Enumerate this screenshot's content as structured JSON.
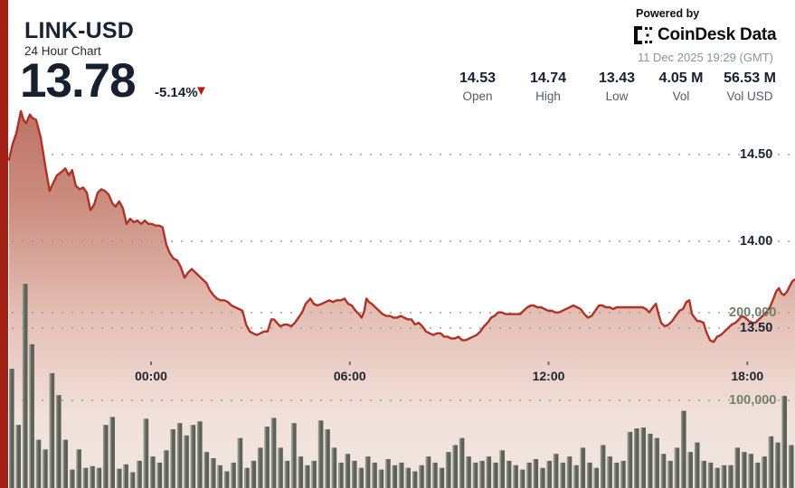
{
  "header": {
    "title": "LINK-USD",
    "subtitle": "24 Hour Chart",
    "price": "13.78",
    "change": "-5.14%",
    "down_arrow": "▼",
    "powered_by": "Powered by",
    "brand": "CoinDesk",
    "brand2": "Data",
    "timestamp": "11 Dec 2025 19:29 (GMT)"
  },
  "stats": [
    {
      "value": "14.53",
      "label": "Open"
    },
    {
      "value": "14.74",
      "label": "High"
    },
    {
      "value": "13.43",
      "label": "Low"
    },
    {
      "value": "4.05 M",
      "label": "Vol"
    },
    {
      "value": "56.53 M",
      "label": "Vol USD"
    }
  ],
  "colors": {
    "accent_red": "#a32015",
    "line_red": "#ad3327",
    "arrow_red": "#c2190f",
    "navy_text": "#16202e",
    "volume_bar": "#5a6056",
    "volume_bar_highlight": "#8e9488",
    "volume_label": "#74806f",
    "grid_dot": "#8f8f92"
  },
  "chart_data": {
    "type": "line",
    "title": "LINK-USD 24 Hour Chart",
    "subtitle": "price line with volume bars",
    "legend": "none",
    "grid": "dotted horizontal",
    "x_axis": {
      "hours_span": 24,
      "tick_labels": [
        "00:00",
        "06:00",
        "12:00",
        "18:00"
      ],
      "tick_hours": [
        4.56,
        10.56,
        16.56,
        22.56
      ]
    },
    "price_axis": {
      "side": "right",
      "range": [
        13.3,
        14.8
      ],
      "ticks": [
        {
          "label": "14.50",
          "value": 14.5
        },
        {
          "label": "14.00",
          "value": 14.0
        },
        {
          "label": "13.50",
          "value": 13.5
        }
      ],
      "open": 14.53,
      "high": 14.74,
      "low": 13.43,
      "last": 13.78
    },
    "volume_axis": {
      "side": "right",
      "units": "LINK",
      "ticks": [
        {
          "label": "200,000",
          "value": 200000
        },
        {
          "label": "100,000",
          "value": 100000
        }
      ]
    },
    "price_series": [
      [
        0.27,
        14.47
      ],
      [
        0.38,
        14.56
      ],
      [
        0.49,
        14.62
      ],
      [
        0.63,
        14.75
      ],
      [
        0.71,
        14.7
      ],
      [
        0.79,
        14.68
      ],
      [
        0.9,
        14.73
      ],
      [
        0.98,
        14.71
      ],
      [
        1.09,
        14.7
      ],
      [
        1.23,
        14.6
      ],
      [
        1.37,
        14.43
      ],
      [
        1.5,
        14.29
      ],
      [
        1.64,
        14.35
      ],
      [
        1.72,
        14.38
      ],
      [
        1.86,
        14.4
      ],
      [
        1.97,
        14.42
      ],
      [
        2.08,
        14.38
      ],
      [
        2.18,
        14.41
      ],
      [
        2.29,
        14.32
      ],
      [
        2.4,
        14.3
      ],
      [
        2.51,
        14.31
      ],
      [
        2.62,
        14.28
      ],
      [
        2.73,
        14.18
      ],
      [
        2.84,
        14.21
      ],
      [
        2.95,
        14.28
      ],
      [
        3.06,
        14.3
      ],
      [
        3.17,
        14.29
      ],
      [
        3.28,
        14.27
      ],
      [
        3.39,
        14.22
      ],
      [
        3.49,
        14.2
      ],
      [
        3.6,
        14.23
      ],
      [
        3.71,
        14.19
      ],
      [
        3.82,
        14.1
      ],
      [
        3.93,
        14.13
      ],
      [
        4.04,
        14.11
      ],
      [
        4.15,
        14.12
      ],
      [
        4.26,
        14.1
      ],
      [
        4.37,
        14.12
      ],
      [
        4.48,
        14.1
      ],
      [
        4.59,
        14.1
      ],
      [
        4.7,
        14.09
      ],
      [
        4.81,
        14.09
      ],
      [
        4.91,
        14.08
      ],
      [
        5.02,
        13.98
      ],
      [
        5.13,
        13.93
      ],
      [
        5.24,
        13.9
      ],
      [
        5.35,
        13.89
      ],
      [
        5.46,
        13.85
      ],
      [
        5.57,
        13.79
      ],
      [
        5.68,
        13.82
      ],
      [
        5.79,
        13.84
      ],
      [
        5.9,
        13.82
      ],
      [
        6.01,
        13.8
      ],
      [
        6.12,
        13.78
      ],
      [
        6.23,
        13.76
      ],
      [
        6.33,
        13.72
      ],
      [
        6.44,
        13.69
      ],
      [
        6.55,
        13.67
      ],
      [
        6.66,
        13.66
      ],
      [
        6.77,
        13.66
      ],
      [
        6.88,
        13.65
      ],
      [
        6.99,
        13.63
      ],
      [
        7.1,
        13.62
      ],
      [
        7.21,
        13.61
      ],
      [
        7.32,
        13.6
      ],
      [
        7.43,
        13.52
      ],
      [
        7.54,
        13.48
      ],
      [
        7.64,
        13.47
      ],
      [
        7.75,
        13.46
      ],
      [
        7.86,
        13.47
      ],
      [
        7.97,
        13.48
      ],
      [
        8.08,
        13.48
      ],
      [
        8.19,
        13.55
      ],
      [
        8.27,
        13.55
      ],
      [
        8.36,
        13.53
      ],
      [
        8.46,
        13.51
      ],
      [
        8.57,
        13.52
      ],
      [
        8.68,
        13.52
      ],
      [
        8.79,
        13.51
      ],
      [
        8.9,
        13.53
      ],
      [
        9.01,
        13.56
      ],
      [
        9.12,
        13.59
      ],
      [
        9.23,
        13.64
      ],
      [
        9.37,
        13.67
      ],
      [
        9.47,
        13.64
      ],
      [
        9.58,
        13.63
      ],
      [
        9.72,
        13.64
      ],
      [
        9.83,
        13.65
      ],
      [
        9.94,
        13.66
      ],
      [
        10.05,
        13.65
      ],
      [
        10.16,
        13.66
      ],
      [
        10.29,
        13.66
      ],
      [
        10.4,
        13.67
      ],
      [
        10.51,
        13.64
      ],
      [
        10.62,
        13.63
      ],
      [
        10.73,
        13.6
      ],
      [
        10.84,
        13.58
      ],
      [
        10.92,
        13.56
      ],
      [
        11.0,
        13.6
      ],
      [
        11.06,
        13.67
      ],
      [
        11.14,
        13.65
      ],
      [
        11.22,
        13.64
      ],
      [
        11.33,
        13.62
      ],
      [
        11.44,
        13.6
      ],
      [
        11.55,
        13.58
      ],
      [
        11.66,
        13.57
      ],
      [
        11.77,
        13.57
      ],
      [
        11.88,
        13.56
      ],
      [
        11.99,
        13.56
      ],
      [
        12.1,
        13.57
      ],
      [
        12.2,
        13.56
      ],
      [
        12.31,
        13.55
      ],
      [
        12.42,
        13.55
      ],
      [
        12.53,
        13.52
      ],
      [
        12.64,
        13.53
      ],
      [
        12.75,
        13.51
      ],
      [
        12.86,
        13.48
      ],
      [
        12.97,
        13.47
      ],
      [
        13.08,
        13.46
      ],
      [
        13.19,
        13.47
      ],
      [
        13.3,
        13.47
      ],
      [
        13.41,
        13.45
      ],
      [
        13.51,
        13.45
      ],
      [
        13.62,
        13.44
      ],
      [
        13.73,
        13.44
      ],
      [
        13.84,
        13.45
      ],
      [
        13.95,
        13.43
      ],
      [
        14.06,
        13.43
      ],
      [
        14.17,
        13.44
      ],
      [
        14.28,
        13.45
      ],
      [
        14.39,
        13.46
      ],
      [
        14.5,
        13.48
      ],
      [
        14.61,
        13.51
      ],
      [
        14.72,
        13.53
      ],
      [
        14.83,
        13.56
      ],
      [
        14.93,
        13.57
      ],
      [
        15.04,
        13.59
      ],
      [
        15.15,
        13.59
      ],
      [
        15.26,
        13.58
      ],
      [
        15.37,
        13.58
      ],
      [
        15.48,
        13.58
      ],
      [
        15.59,
        13.58
      ],
      [
        15.7,
        13.58
      ],
      [
        15.81,
        13.6
      ],
      [
        15.92,
        13.62
      ],
      [
        16.03,
        13.63
      ],
      [
        16.11,
        13.63
      ],
      [
        16.22,
        13.62
      ],
      [
        16.33,
        13.62
      ],
      [
        16.44,
        13.61
      ],
      [
        16.55,
        13.6
      ],
      [
        16.66,
        13.6
      ],
      [
        16.76,
        13.59
      ],
      [
        16.87,
        13.59
      ],
      [
        16.98,
        13.6
      ],
      [
        17.09,
        13.61
      ],
      [
        17.2,
        13.62
      ],
      [
        17.31,
        13.63
      ],
      [
        17.42,
        13.62
      ],
      [
        17.53,
        13.61
      ],
      [
        17.64,
        13.58
      ],
      [
        17.75,
        13.56
      ],
      [
        17.86,
        13.57
      ],
      [
        17.97,
        13.6
      ],
      [
        18.08,
        13.63
      ],
      [
        18.18,
        13.63
      ],
      [
        18.29,
        13.62
      ],
      [
        18.4,
        13.62
      ],
      [
        18.51,
        13.61
      ],
      [
        18.62,
        13.62
      ],
      [
        18.73,
        13.62
      ],
      [
        18.84,
        13.62
      ],
      [
        18.95,
        13.62
      ],
      [
        19.06,
        13.62
      ],
      [
        19.17,
        13.62
      ],
      [
        19.28,
        13.62
      ],
      [
        19.39,
        13.62
      ],
      [
        19.5,
        13.61
      ],
      [
        19.6,
        13.59
      ],
      [
        19.71,
        13.62
      ],
      [
        19.8,
        13.64
      ],
      [
        19.88,
        13.58
      ],
      [
        19.96,
        13.53
      ],
      [
        20.07,
        13.51
      ],
      [
        20.18,
        13.52
      ],
      [
        20.29,
        13.54
      ],
      [
        20.4,
        13.57
      ],
      [
        20.51,
        13.6
      ],
      [
        20.62,
        13.61
      ],
      [
        20.72,
        13.65
      ],
      [
        20.81,
        13.66
      ],
      [
        20.89,
        13.58
      ],
      [
        20.97,
        13.56
      ],
      [
        21.05,
        13.54
      ],
      [
        21.13,
        13.54
      ],
      [
        21.24,
        13.53
      ],
      [
        21.32,
        13.48
      ],
      [
        21.43,
        13.43
      ],
      [
        21.54,
        13.42
      ],
      [
        21.65,
        13.45
      ],
      [
        21.76,
        13.46
      ],
      [
        21.87,
        13.48
      ],
      [
        21.98,
        13.5
      ],
      [
        22.09,
        13.52
      ],
      [
        22.2,
        13.53
      ],
      [
        22.31,
        13.55
      ],
      [
        22.39,
        13.57
      ],
      [
        22.5,
        13.56
      ],
      [
        22.61,
        13.54
      ],
      [
        22.72,
        13.53
      ],
      [
        22.8,
        13.53
      ],
      [
        22.91,
        13.55
      ],
      [
        23.02,
        13.57
      ],
      [
        23.13,
        13.59
      ],
      [
        23.24,
        13.62
      ],
      [
        23.35,
        13.67
      ],
      [
        23.43,
        13.71
      ],
      [
        23.51,
        13.73
      ],
      [
        23.59,
        13.7
      ],
      [
        23.67,
        13.69
      ],
      [
        23.76,
        13.71
      ],
      [
        23.84,
        13.74
      ],
      [
        23.92,
        13.77
      ],
      [
        24.0,
        13.78
      ]
    ],
    "volume_series_k": [
      136,
      72,
      233,
      164,
      55,
      44,
      131,
      106,
      55,
      21,
      44,
      23,
      25,
      23,
      72,
      81,
      22,
      27,
      18,
      31,
      79,
      36,
      29,
      43,
      67,
      74,
      60,
      72,
      76,
      41,
      34,
      26,
      19,
      29,
      57,
      23,
      31,
      46,
      70,
      80,
      46,
      31,
      74,
      36,
      26,
      31,
      77,
      67,
      46,
      29,
      39,
      31,
      23,
      36,
      29,
      21,
      33,
      26,
      29,
      23,
      19,
      26,
      36,
      29,
      23,
      41,
      49,
      57,
      36,
      29,
      31,
      36,
      29,
      43,
      31,
      26,
      21,
      29,
      33,
      23,
      31,
      39,
      29,
      36,
      26,
      46,
      29,
      23,
      49,
      36,
      29,
      31,
      64,
      68,
      69,
      62,
      57,
      39,
      31,
      46,
      88,
      41,
      52,
      31,
      29,
      23,
      26,
      26,
      46,
      41,
      39,
      29,
      36,
      59,
      52,
      105,
      49
    ]
  }
}
